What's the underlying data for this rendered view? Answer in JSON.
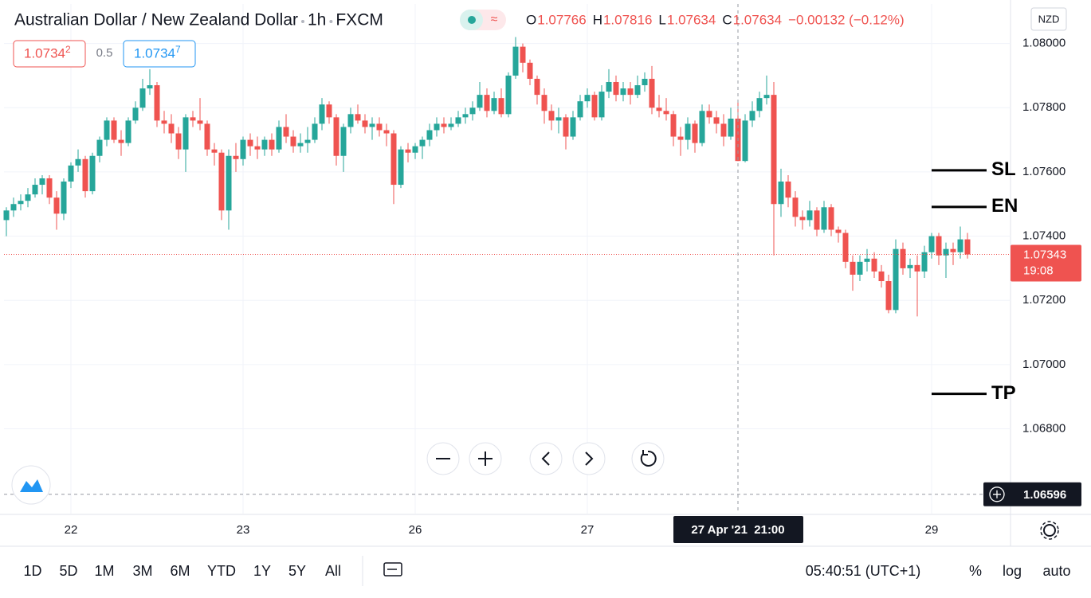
{
  "header": {
    "symbol": "Australian Dollar / New Zealand Dollar",
    "interval": "1h",
    "exchange": "FXCM",
    "ohlc_labels": [
      "O",
      "H",
      "L",
      "C"
    ],
    "change": "−0.00132 (−0.12%)"
  },
  "trade_panel": {
    "sell": "1.0734",
    "sell_pip": "2",
    "spread": "0.5",
    "buy": "1.0734",
    "buy_pip": "7"
  },
  "currency": "NZD",
  "chart_data": {
    "type": "candlestick",
    "up_color": "#26a69a",
    "down_color": "#ef5350",
    "ohlc": [
      [
        1.0745,
        1.0749,
        1.074,
        1.0748
      ],
      [
        1.0748,
        1.0752,
        1.0746,
        1.075
      ],
      [
        1.075,
        1.0753,
        1.0748,
        1.0751
      ],
      [
        1.0751,
        1.0755,
        1.0749,
        1.0753
      ],
      [
        1.0753,
        1.0758,
        1.0752,
        1.0756
      ],
      [
        1.0756,
        1.0759,
        1.0753,
        1.0758
      ],
      [
        1.0758,
        1.0759,
        1.075,
        1.0752
      ],
      [
        1.0752,
        1.0754,
        1.0742,
        1.0747
      ],
      [
        1.0747,
        1.0758,
        1.0745,
        1.0757
      ],
      [
        1.0757,
        1.0763,
        1.0755,
        1.0762
      ],
      [
        1.0762,
        1.0767,
        1.076,
        1.0764
      ],
      [
        1.0764,
        1.0765,
        1.0752,
        1.0754
      ],
      [
        1.0754,
        1.0766,
        1.0753,
        1.0765
      ],
      [
        1.0765,
        1.0771,
        1.0763,
        1.077
      ],
      [
        1.077,
        1.0777,
        1.0768,
        1.0776
      ],
      [
        1.0776,
        1.0777,
        1.0769,
        1.077
      ],
      [
        1.077,
        1.0773,
        1.0765,
        1.0769
      ],
      [
        1.0769,
        1.0777,
        1.0768,
        1.0776
      ],
      [
        1.0776,
        1.0782,
        1.0775,
        1.078
      ],
      [
        1.078,
        1.0789,
        1.0779,
        1.0786
      ],
      [
        1.0786,
        1.0792,
        1.0784,
        1.0787
      ],
      [
        1.0787,
        1.0788,
        1.0774,
        1.0776
      ],
      [
        1.0776,
        1.0779,
        1.0772,
        1.0775
      ],
      [
        1.0775,
        1.0778,
        1.0769,
        1.0772
      ],
      [
        1.0772,
        1.0774,
        1.0764,
        1.0767
      ],
      [
        1.0767,
        1.0778,
        1.076,
        1.0777
      ],
      [
        1.0777,
        1.0779,
        1.0774,
        1.0776
      ],
      [
        1.0776,
        1.0783,
        1.0773,
        1.0775
      ],
      [
        1.0775,
        1.0776,
        1.0765,
        1.0767
      ],
      [
        1.0767,
        1.0769,
        1.0762,
        1.0766
      ],
      [
        1.0766,
        1.0767,
        1.0745,
        1.0748
      ],
      [
        1.0748,
        1.0767,
        1.0742,
        1.0765
      ],
      [
        1.0765,
        1.0769,
        1.076,
        1.0764
      ],
      [
        1.0764,
        1.0771,
        1.0762,
        1.077
      ],
      [
        1.077,
        1.0772,
        1.0765,
        1.0768
      ],
      [
        1.0768,
        1.0771,
        1.0764,
        1.0767
      ],
      [
        1.0767,
        1.0771,
        1.0765,
        1.077
      ],
      [
        1.077,
        1.0772,
        1.0765,
        1.0767
      ],
      [
        1.0767,
        1.0776,
        1.0766,
        1.0774
      ],
      [
        1.0774,
        1.0778,
        1.0769,
        1.0771
      ],
      [
        1.0771,
        1.0773,
        1.0766,
        1.0768
      ],
      [
        1.0768,
        1.0772,
        1.0766,
        1.0769
      ],
      [
        1.0769,
        1.0774,
        1.0766,
        1.077
      ],
      [
        1.077,
        1.0777,
        1.0769,
        1.0775
      ],
      [
        1.0775,
        1.0783,
        1.0773,
        1.0781
      ],
      [
        1.0781,
        1.0782,
        1.0775,
        1.0777
      ],
      [
        1.0777,
        1.0778,
        1.0762,
        1.0765
      ],
      [
        1.0765,
        1.0775,
        1.076,
        1.0774
      ],
      [
        1.0774,
        1.078,
        1.0772,
        1.0778
      ],
      [
        1.0778,
        1.0781,
        1.0775,
        1.0776
      ],
      [
        1.0776,
        1.0778,
        1.0772,
        1.0774
      ],
      [
        1.0774,
        1.0777,
        1.077,
        1.0775
      ],
      [
        1.0775,
        1.0777,
        1.0771,
        1.0773
      ],
      [
        1.0773,
        1.0775,
        1.0768,
        1.0772
      ],
      [
        1.0772,
        1.0773,
        1.075,
        1.0756
      ],
      [
        1.0756,
        1.0768,
        1.0755,
        1.0767
      ],
      [
        1.0767,
        1.0769,
        1.0763,
        1.0766
      ],
      [
        1.0766,
        1.0769,
        1.0764,
        1.0768
      ],
      [
        1.0768,
        1.0771,
        1.0764,
        1.077
      ],
      [
        1.077,
        1.0775,
        1.0768,
        1.0773
      ],
      [
        1.0773,
        1.0777,
        1.0771,
        1.0775
      ],
      [
        1.0775,
        1.0777,
        1.0772,
        1.0774
      ],
      [
        1.0774,
        1.0777,
        1.0773,
        1.0775
      ],
      [
        1.0775,
        1.0779,
        1.0774,
        1.0777
      ],
      [
        1.0777,
        1.078,
        1.0775,
        1.0778
      ],
      [
        1.0778,
        1.0782,
        1.0776,
        1.078
      ],
      [
        1.078,
        1.0788,
        1.0779,
        1.0784
      ],
      [
        1.0784,
        1.0786,
        1.0777,
        1.0779
      ],
      [
        1.0779,
        1.0785,
        1.0778,
        1.0783
      ],
      [
        1.0783,
        1.0786,
        1.0777,
        1.0778
      ],
      [
        1.0778,
        1.0791,
        1.0777,
        1.079
      ],
      [
        1.079,
        1.0802,
        1.0789,
        1.0799
      ],
      [
        1.0799,
        1.08,
        1.0791,
        1.0794
      ],
      [
        1.0794,
        1.0795,
        1.0787,
        1.0789
      ],
      [
        1.0789,
        1.079,
        1.0781,
        1.0784
      ],
      [
        1.0784,
        1.0786,
        1.0775,
        1.0779
      ],
      [
        1.0779,
        1.0781,
        1.0773,
        1.0776
      ],
      [
        1.0776,
        1.078,
        1.0772,
        1.0777
      ],
      [
        1.0777,
        1.0778,
        1.0767,
        1.0771
      ],
      [
        1.0771,
        1.0779,
        1.077,
        1.0777
      ],
      [
        1.0777,
        1.0784,
        1.0776,
        1.0782
      ],
      [
        1.0782,
        1.0786,
        1.078,
        1.0784
      ],
      [
        1.0784,
        1.0785,
        1.0776,
        1.0777
      ],
      [
        1.0777,
        1.0787,
        1.0776,
        1.0785
      ],
      [
        1.0785,
        1.0792,
        1.0783,
        1.0788
      ],
      [
        1.0788,
        1.079,
        1.0782,
        1.0784
      ],
      [
        1.0784,
        1.0788,
        1.0782,
        1.0786
      ],
      [
        1.0786,
        1.0788,
        1.0781,
        1.0784
      ],
      [
        1.0784,
        1.079,
        1.0783,
        1.0787
      ],
      [
        1.0787,
        1.0791,
        1.0785,
        1.0789
      ],
      [
        1.0789,
        1.0793,
        1.0778,
        1.078
      ],
      [
        1.078,
        1.0784,
        1.0777,
        1.0779
      ],
      [
        1.0779,
        1.0783,
        1.0776,
        1.0778
      ],
      [
        1.0778,
        1.0779,
        1.0768,
        1.0771
      ],
      [
        1.0771,
        1.0774,
        1.0765,
        1.077
      ],
      [
        1.077,
        1.0777,
        1.0767,
        1.0775
      ],
      [
        1.0775,
        1.0776,
        1.0766,
        1.0769
      ],
      [
        1.0769,
        1.0781,
        1.0768,
        1.0779
      ],
      [
        1.0779,
        1.0781,
        1.0775,
        1.0777
      ],
      [
        1.0777,
        1.0779,
        1.0772,
        1.0775
      ],
      [
        1.0775,
        1.0778,
        1.0768,
        1.0771
      ],
      [
        1.0771,
        1.078,
        1.077,
        1.07766
      ],
      [
        1.07766,
        1.07816,
        1.07634,
        1.07634
      ],
      [
        1.07634,
        1.0778,
        1.0763,
        1.0776
      ],
      [
        1.0776,
        1.0782,
        1.0774,
        1.0779
      ],
      [
        1.0779,
        1.0785,
        1.0777,
        1.0783
      ],
      [
        1.0783,
        1.079,
        1.0781,
        1.0784
      ],
      [
        1.0784,
        1.0788,
        1.0734,
        1.075
      ],
      [
        1.075,
        1.0761,
        1.0746,
        1.0757
      ],
      [
        1.0757,
        1.0759,
        1.0749,
        1.0752
      ],
      [
        1.0752,
        1.0754,
        1.0743,
        1.0746
      ],
      [
        1.0746,
        1.0748,
        1.0742,
        1.0745
      ],
      [
        1.0745,
        1.0751,
        1.0743,
        1.0748
      ],
      [
        1.0748,
        1.0749,
        1.074,
        1.0742
      ],
      [
        1.0742,
        1.0751,
        1.0741,
        1.0749
      ],
      [
        1.0749,
        1.075,
        1.074,
        1.0742
      ],
      [
        1.0742,
        1.0743,
        1.0738,
        1.0741
      ],
      [
        1.0741,
        1.0742,
        1.073,
        1.0732
      ],
      [
        1.0732,
        1.0734,
        1.0723,
        1.0728
      ],
      [
        1.0728,
        1.0734,
        1.0726,
        1.0732
      ],
      [
        1.0732,
        1.0736,
        1.0729,
        1.0733
      ],
      [
        1.0733,
        1.0735,
        1.0727,
        1.0729
      ],
      [
        1.0729,
        1.0731,
        1.0724,
        1.0726
      ],
      [
        1.0726,
        1.0728,
        1.0716,
        1.0717
      ],
      [
        1.0717,
        1.0739,
        1.0716,
        1.0736
      ],
      [
        1.0736,
        1.0738,
        1.0728,
        1.073
      ],
      [
        1.073,
        1.0733,
        1.0727,
        1.0731
      ],
      [
        1.0731,
        1.0734,
        1.0715,
        1.0729
      ],
      [
        1.0729,
        1.0737,
        1.0727,
        1.0735
      ],
      [
        1.0735,
        1.0741,
        1.0733,
        1.074
      ],
      [
        1.074,
        1.0741,
        1.0731,
        1.0734
      ],
      [
        1.0734,
        1.0738,
        1.0727,
        1.0736
      ],
      [
        1.0736,
        1.0738,
        1.0731,
        1.0735
      ],
      [
        1.0735,
        1.0743,
        1.0733,
        1.0739
      ],
      [
        1.0739,
        1.0741,
        1.0733,
        1.07343
      ]
    ],
    "ylim": [
      1.06536,
      1.08123
    ],
    "yticks": [
      {
        "value": 1.068,
        "label": "1.06800"
      },
      {
        "value": 1.07,
        "label": "1.07000"
      },
      {
        "value": 1.072,
        "label": "1.07200"
      },
      {
        "value": 1.074,
        "label": "1.07400"
      },
      {
        "value": 1.076,
        "label": "1.07600"
      },
      {
        "value": 1.078,
        "label": "1.07800"
      },
      {
        "value": 1.08,
        "label": "1.08000"
      }
    ],
    "xticks": [
      {
        "value": 9,
        "label": "22"
      },
      {
        "value": 33,
        "label": "23"
      },
      {
        "value": 57,
        "label": "26"
      },
      {
        "value": 81,
        "label": "27"
      },
      {
        "value": 129,
        "label": "29"
      }
    ],
    "grid": true,
    "annotations": [
      {
        "label": "SL",
        "value": 1.07605
      },
      {
        "label": "EN",
        "value": 1.07491
      },
      {
        "label": "TP",
        "value": 1.06909
      }
    ],
    "last_price_countdown": "19:08",
    "crosshair": {
      "index": 102,
      "time_label": "27 Apr '21  21:00",
      "price": 1.06596
    }
  },
  "toolbar": {
    "timeframes": [
      "1D",
      "5D",
      "1M",
      "3M",
      "6M",
      "YTD",
      "1Y",
      "5Y",
      "All"
    ],
    "clock": "05:40:51 (UTC+1)",
    "percent": "%",
    "log": "log",
    "auto": "auto"
  }
}
